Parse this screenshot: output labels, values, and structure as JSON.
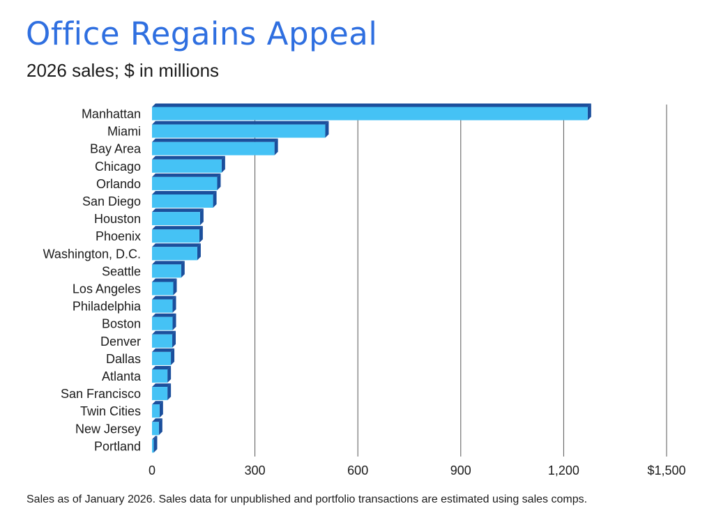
{
  "header": {
    "title": "Office Regains Appeal",
    "subtitle": "2026 sales; $ in millions"
  },
  "footer": {
    "note": "Sales as of January 2026. Sales data for unpublished and portfolio transactions are estimated using sales comps."
  },
  "colors": {
    "title": "#2f6fe0",
    "bar_face": "#45c2f5",
    "bar_side": "#1b4f9c",
    "grid": "#555555"
  },
  "chart_data": {
    "type": "bar",
    "orientation": "horizontal",
    "style": "3d",
    "title": "Office Regains Appeal",
    "subtitle": "2026 sales; $ in millions",
    "categories": [
      "Manhattan",
      "Miami",
      "Bay Area",
      "Chicago",
      "Orlando",
      "San Diego",
      "Houston",
      "Phoenix",
      "Washington, D.C.",
      "Seattle",
      "Los Angeles",
      "Philadelphia",
      "Boston",
      "Denver",
      "Dallas",
      "Atlanta",
      "San Francisco",
      "Twin Cities",
      "New Jersey",
      "Portland"
    ],
    "values": [
      1270,
      505,
      357,
      203,
      190,
      178,
      140,
      138,
      132,
      85,
      62,
      60,
      60,
      59,
      55,
      45,
      45,
      22,
      20,
      5
    ],
    "xlim": [
      0,
      1500
    ],
    "xticks": [
      0,
      300,
      600,
      900,
      1200,
      1500
    ],
    "xtick_labels": [
      "0",
      "300",
      "600",
      "900",
      "1,200",
      "$1,500"
    ],
    "grid": true,
    "legend": "none"
  }
}
